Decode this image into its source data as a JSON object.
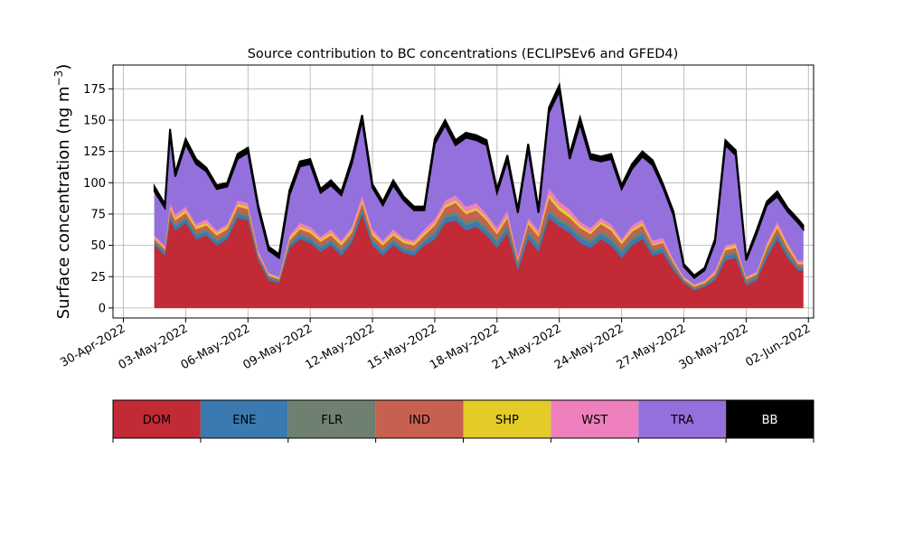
{
  "chart_data": {
    "type": "area",
    "title": "Source contribution to BC concentrations (ECLIPSEv6 and GFED4)",
    "ylabel": "Surface concentration (ng m$^{-3}$)",
    "ylabel_main": "Surface concentration (ng m",
    "ylabel_sup": "−3",
    "ylabel_close": ")",
    "xlabel": "",
    "grid": true,
    "stacked": true,
    "legend_placement": "below plot, horizontal color bar",
    "x_range": [
      "2022-04-29T12:00",
      "2022-06-02T06:00"
    ],
    "ylim": [
      -8,
      194
    ],
    "yticks": [
      0,
      25,
      50,
      75,
      100,
      125,
      150,
      175
    ],
    "xticks": [
      {
        "date": "2022-04-30",
        "label": "30-Apr-2022"
      },
      {
        "date": "2022-05-03",
        "label": "03-May-2022"
      },
      {
        "date": "2022-05-06",
        "label": "06-May-2022"
      },
      {
        "date": "2022-05-09",
        "label": "09-May-2022"
      },
      {
        "date": "2022-05-12",
        "label": "12-May-2022"
      },
      {
        "date": "2022-05-15",
        "label": "15-May-2022"
      },
      {
        "date": "2022-05-18",
        "label": "18-May-2022"
      },
      {
        "date": "2022-05-21",
        "label": "21-May-2022"
      },
      {
        "date": "2022-05-24",
        "label": "24-May-2022"
      },
      {
        "date": "2022-05-27",
        "label": "27-May-2022"
      },
      {
        "date": "2022-05-30",
        "label": "30-May-2022"
      },
      {
        "date": "2022-06-02",
        "label": "02-Jun-2022"
      }
    ],
    "x": [
      "2022-05-01T12:00",
      "2022-05-02T00:00",
      "2022-05-02T06:00",
      "2022-05-02T12:00",
      "2022-05-03T00:00",
      "2022-05-03T12:00",
      "2022-05-04T00:00",
      "2022-05-04T12:00",
      "2022-05-05T00:00",
      "2022-05-05T12:00",
      "2022-05-06T00:00",
      "2022-05-06T12:00",
      "2022-05-07T00:00",
      "2022-05-07T12:00",
      "2022-05-08T00:00",
      "2022-05-08T12:00",
      "2022-05-09T00:00",
      "2022-05-09T12:00",
      "2022-05-10T00:00",
      "2022-05-10T12:00",
      "2022-05-11T00:00",
      "2022-05-11T12:00",
      "2022-05-12T00:00",
      "2022-05-12T12:00",
      "2022-05-13T00:00",
      "2022-05-13T12:00",
      "2022-05-14T00:00",
      "2022-05-14T12:00",
      "2022-05-15T00:00",
      "2022-05-15T12:00",
      "2022-05-16T00:00",
      "2022-05-16T12:00",
      "2022-05-17T00:00",
      "2022-05-17T12:00",
      "2022-05-18T00:00",
      "2022-05-18T12:00",
      "2022-05-19T00:00",
      "2022-05-19T12:00",
      "2022-05-20T00:00",
      "2022-05-20T12:00",
      "2022-05-21T00:00",
      "2022-05-21T12:00",
      "2022-05-22T00:00",
      "2022-05-22T12:00",
      "2022-05-23T00:00",
      "2022-05-23T12:00",
      "2022-05-24T00:00",
      "2022-05-24T12:00",
      "2022-05-25T00:00",
      "2022-05-25T12:00",
      "2022-05-26T00:00",
      "2022-05-26T12:00",
      "2022-05-27T00:00",
      "2022-05-27T12:00",
      "2022-05-28T00:00",
      "2022-05-28T12:00",
      "2022-05-29T00:00",
      "2022-05-29T12:00",
      "2022-05-30T00:00",
      "2022-05-30T12:00",
      "2022-05-31T00:00",
      "2022-05-31T12:00",
      "2022-06-01T00:00",
      "2022-06-01T12:00",
      "2022-06-01T18:00"
    ],
    "series": [
      {
        "name": "DOM",
        "color": "#c22a35",
        "values": [
          50,
          42,
          70,
          62,
          68,
          55,
          58,
          50,
          55,
          72,
          70,
          38,
          22,
          20,
          48,
          55,
          52,
          45,
          50,
          42,
          52,
          75,
          50,
          42,
          50,
          44,
          42,
          50,
          55,
          68,
          70,
          62,
          65,
          58,
          48,
          60,
          30,
          55,
          45,
          72,
          65,
          60,
          52,
          48,
          55,
          50,
          40,
          50,
          55,
          42,
          44,
          30,
          20,
          14,
          17,
          22,
          38,
          40,
          18,
          22,
          40,
          55,
          40,
          30,
          30
        ]
      },
      {
        "name": "ENE",
        "color": "#3a7ab0",
        "values": [
          2,
          2,
          3,
          3,
          3,
          3,
          3,
          3,
          3,
          3,
          3,
          2,
          2,
          1,
          2,
          3,
          3,
          3,
          3,
          3,
          3,
          3,
          3,
          3,
          3,
          3,
          3,
          3,
          4,
          4,
          4,
          4,
          4,
          4,
          4,
          4,
          3,
          4,
          4,
          4,
          4,
          4,
          4,
          4,
          4,
          4,
          4,
          4,
          4,
          3,
          3,
          2,
          1,
          1,
          1,
          2,
          3,
          3,
          2,
          2,
          3,
          3,
          3,
          2,
          2
        ]
      },
      {
        "name": "FLR",
        "color": "#6e8070",
        "values": [
          1,
          1,
          2,
          2,
          2,
          2,
          2,
          2,
          2,
          2,
          2,
          1,
          1,
          1,
          2,
          2,
          2,
          2,
          2,
          2,
          2,
          2,
          2,
          2,
          2,
          2,
          2,
          2,
          3,
          3,
          3,
          3,
          3,
          3,
          3,
          3,
          2,
          3,
          3,
          3,
          3,
          3,
          3,
          3,
          3,
          3,
          3,
          3,
          3,
          2,
          2,
          2,
          1,
          1,
          1,
          1,
          2,
          2,
          1,
          1,
          2,
          2,
          2,
          1,
          1
        ]
      },
      {
        "name": "IND",
        "color": "#c86050",
        "values": [
          2,
          2,
          4,
          3,
          3,
          3,
          3,
          3,
          3,
          4,
          4,
          2,
          1,
          1,
          2,
          3,
          3,
          3,
          3,
          3,
          3,
          4,
          3,
          3,
          3,
          3,
          3,
          3,
          4,
          5,
          7,
          6,
          6,
          5,
          4,
          5,
          3,
          5,
          5,
          9,
          6,
          5,
          5,
          4,
          5,
          5,
          4,
          4,
          4,
          3,
          3,
          2,
          1,
          1,
          1,
          2,
          3,
          3,
          2,
          2,
          3,
          4,
          3,
          2,
          2
        ]
      },
      {
        "name": "SHP",
        "color": "#e4cc28",
        "values": [
          1,
          1,
          2,
          2,
          2,
          2,
          2,
          2,
          2,
          2,
          2,
          1,
          1,
          1,
          2,
          2,
          2,
          2,
          2,
          2,
          2,
          2,
          2,
          2,
          2,
          2,
          2,
          2,
          2,
          2,
          2,
          2,
          2,
          2,
          2,
          2,
          1,
          2,
          2,
          3,
          3,
          3,
          2,
          2,
          2,
          2,
          2,
          2,
          2,
          1,
          1,
          1,
          1,
          1,
          1,
          1,
          2,
          2,
          1,
          1,
          2,
          2,
          2,
          1,
          1
        ]
      },
      {
        "name": "WST",
        "color": "#ee80be",
        "values": [
          2,
          2,
          3,
          3,
          3,
          2,
          3,
          2,
          2,
          3,
          3,
          2,
          1,
          1,
          2,
          3,
          3,
          2,
          3,
          2,
          3,
          4,
          3,
          2,
          3,
          2,
          2,
          3,
          3,
          4,
          4,
          4,
          4,
          3,
          3,
          4,
          2,
          3,
          3,
          5,
          4,
          4,
          3,
          3,
          3,
          3,
          2,
          3,
          3,
          3,
          3,
          2,
          1,
          1,
          1,
          2,
          2,
          2,
          1,
          1,
          2,
          3,
          2,
          2,
          2
        ]
      },
      {
        "name": "TRA",
        "color": "#9370db",
        "values": [
          35,
          30,
          55,
          30,
          50,
          48,
          38,
          33,
          30,
          33,
          40,
          33,
          18,
          15,
          32,
          45,
          50,
          35,
          35,
          36,
          50,
          60,
          33,
          28,
          35,
          30,
          24,
          15,
          60,
          60,
          40,
          55,
          50,
          55,
          28,
          40,
          35,
          55,
          14,
          60,
          88,
          40,
          78,
          55,
          45,
          52,
          40,
          45,
          50,
          60,
          40,
          35,
          8,
          5,
          8,
          22,
          80,
          70,
          13,
          30,
          30,
          20,
          25,
          30,
          25
        ]
      },
      {
        "name": "BB",
        "color": "#000000",
        "values": [
          4,
          3,
          4,
          3,
          4,
          4,
          3,
          3,
          3,
          4,
          4,
          3,
          3,
          3,
          4,
          4,
          4,
          3,
          4,
          3,
          4,
          4,
          3,
          3,
          4,
          3,
          3,
          3,
          4,
          4,
          4,
          4,
          4,
          4,
          3,
          4,
          3,
          4,
          3,
          4,
          5,
          4,
          5,
          4,
          4,
          4,
          3,
          4,
          4,
          4,
          3,
          3,
          2,
          2,
          2,
          3,
          4,
          4,
          2,
          3,
          3,
          4,
          3,
          3,
          3
        ]
      }
    ]
  }
}
